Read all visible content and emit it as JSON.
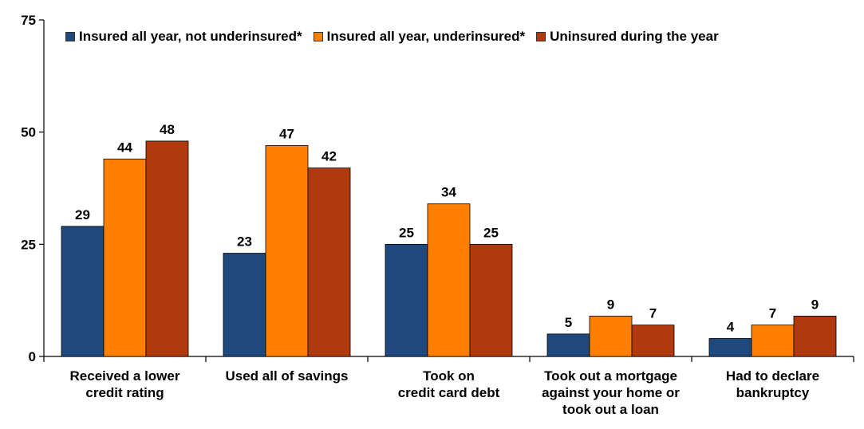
{
  "chart_data": {
    "type": "bar",
    "categories": [
      [
        "Received a lower",
        "credit rating"
      ],
      [
        "Used all of savings"
      ],
      [
        "Took on",
        "credit card debt"
      ],
      [
        "Took out a mortgage",
        "against your home or",
        "took out a loan"
      ],
      [
        "Had to declare",
        "bankruptcy"
      ]
    ],
    "series": [
      {
        "name": "Insured all year, not underinsured*",
        "color": "#1f497d",
        "values": [
          29,
          23,
          25,
          5,
          4
        ]
      },
      {
        "name": "Insured all year, underinsured*",
        "color": "#ff8000",
        "values": [
          44,
          47,
          34,
          9,
          7
        ]
      },
      {
        "name": "Uninsured during the year",
        "color": "#b03a0e",
        "values": [
          48,
          42,
          25,
          7,
          9
        ]
      }
    ],
    "ylim": [
      0,
      75
    ],
    "yticks": [
      0,
      25,
      50,
      75
    ],
    "legend_position": "top",
    "grid": false,
    "title": "",
    "xlabel": "",
    "ylabel": ""
  }
}
